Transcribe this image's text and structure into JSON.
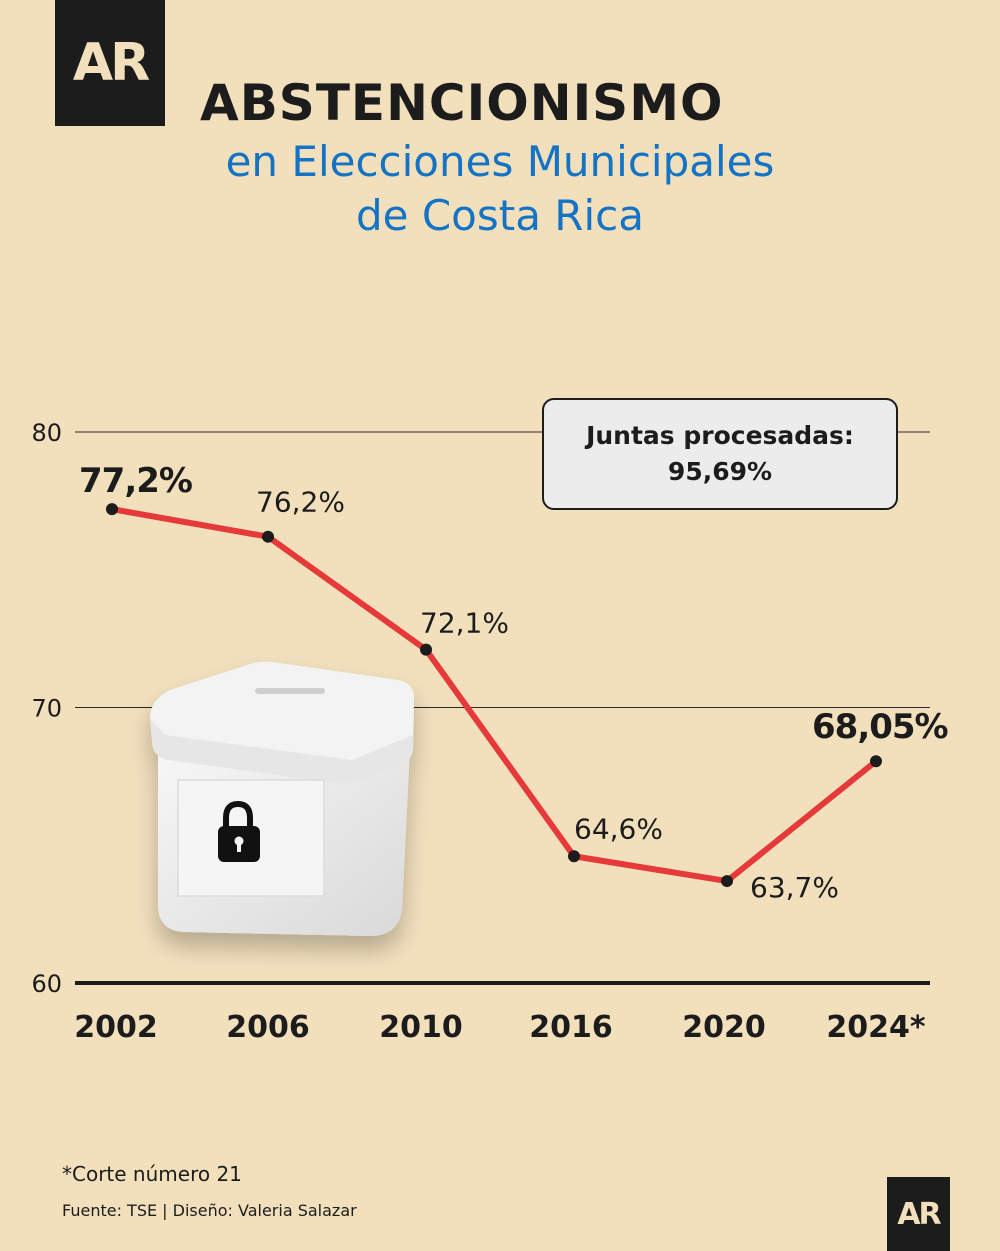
{
  "header": {
    "logo_text": "AR",
    "title": "ABSTENCIONISMO",
    "subtitle_line1": "en Elecciones Municipales",
    "subtitle_line2": "de Costa Rica"
  },
  "callout": {
    "label": "Juntas procesadas:",
    "value": "95,69%"
  },
  "footer": {
    "note": "*Corte número 21",
    "credits": "Fuente: TSE | Diseño: Valeria Salazar",
    "logo_text": "AR"
  },
  "colors": {
    "background": "#f2e0bd",
    "line": "#e63a3a",
    "title": "#1c1c1c",
    "subtitle": "#1473c4"
  },
  "illustration": {
    "ballot_box_icon": "ballot-box-icon",
    "lock_icon": "padlock-icon"
  },
  "chart_data": {
    "type": "line",
    "title": "ABSTENCIONISMO",
    "categories": [
      "2002",
      "2006",
      "2010",
      "2016",
      "2020",
      "2024*"
    ],
    "series": [
      {
        "values": [
          77.2,
          76.2,
          72.1,
          64.6,
          63.7,
          68.05
        ],
        "labels": [
          "77,2%",
          "76,2%",
          "72,1%",
          "64,6%",
          "63,7%",
          "68,05%"
        ]
      }
    ],
    "ylim": [
      60,
      80
    ],
    "yticks": [
      60,
      70,
      80
    ],
    "grid": true,
    "xlabel": "",
    "ylabel": ""
  }
}
